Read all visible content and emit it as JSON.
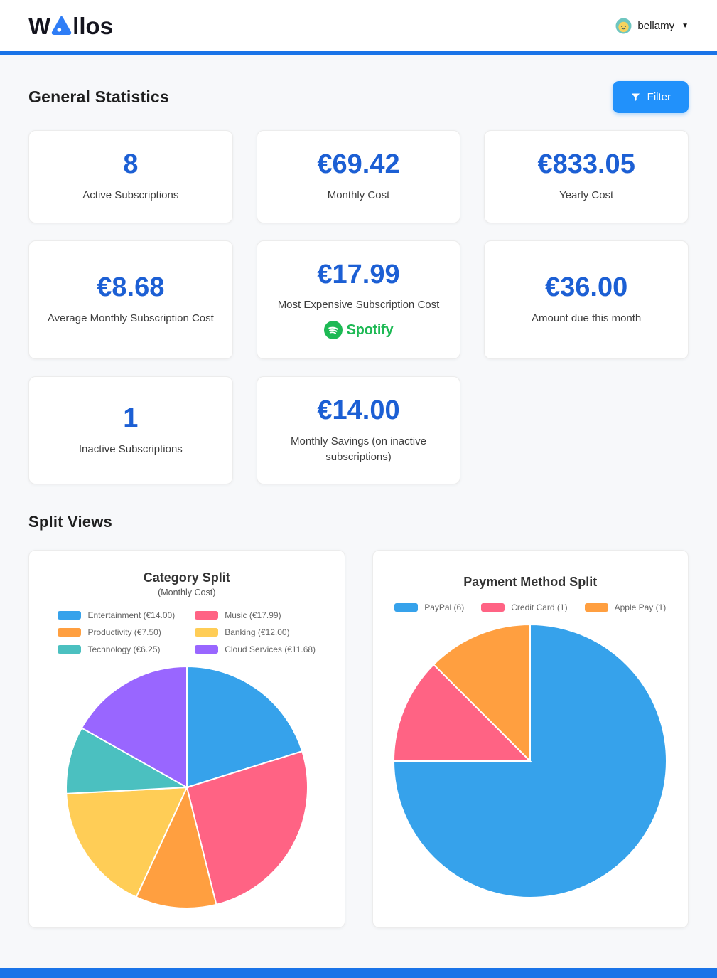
{
  "header": {
    "logo_text_w": "W",
    "logo_text_rest": "llos",
    "user_name": "bellamy",
    "caret_icon": "▼"
  },
  "sections": {
    "general_statistics": "General Statistics",
    "split_views": "Split Views"
  },
  "filter_button": {
    "label": "Filter"
  },
  "stats": [
    {
      "value": "8",
      "label": "Active Subscriptions"
    },
    {
      "value": "€69.42",
      "label": "Monthly Cost"
    },
    {
      "value": "€833.05",
      "label": "Yearly Cost"
    },
    {
      "value": "€8.68",
      "label": "Average Monthly Subscription Cost"
    },
    {
      "value": "€17.99",
      "label": "Most Expensive Subscription Cost",
      "brand": "Spotify"
    },
    {
      "value": "€36.00",
      "label": "Amount due this month"
    },
    {
      "value": "1",
      "label": "Inactive Subscriptions"
    },
    {
      "value": "€14.00",
      "label": "Monthly Savings (on inactive subscriptions)"
    }
  ],
  "colors": {
    "accent": "#1a74e8",
    "stat_value": "#1c5fd4",
    "filter_button_bg": "#2191fb",
    "spotify_green": "#1db954",
    "page_background": "#f7f8fa",
    "card_background": "#ffffff"
  },
  "chart_data": [
    {
      "type": "pie",
      "title": "Category Split",
      "subtitle": "(Monthly Cost)",
      "labels": [
        "Entertainment (€14.00)",
        "Music (€17.99)",
        "Productivity (€7.50)",
        "Banking (€12.00)",
        "Technology (€6.25)",
        "Cloud Services (€11.68)"
      ],
      "values": [
        14.0,
        17.99,
        7.5,
        12.0,
        6.25,
        11.68
      ],
      "colors": [
        "#36a2eb",
        "#ff6384",
        "#ff9f40",
        "#ffcd56",
        "#4bc0c0",
        "#9966ff"
      ],
      "legend_position": "top",
      "start_angle_deg": -90,
      "direction": "clockwise"
    },
    {
      "type": "pie",
      "title": "Payment Method Split",
      "labels": [
        "PayPal (6)",
        "Credit Card (1)",
        "Apple Pay (1)"
      ],
      "values": [
        6,
        1,
        1
      ],
      "colors": [
        "#36a2eb",
        "#ff6384",
        "#ff9f40"
      ],
      "legend_position": "top",
      "start_angle_deg": -90,
      "direction": "clockwise"
    }
  ]
}
